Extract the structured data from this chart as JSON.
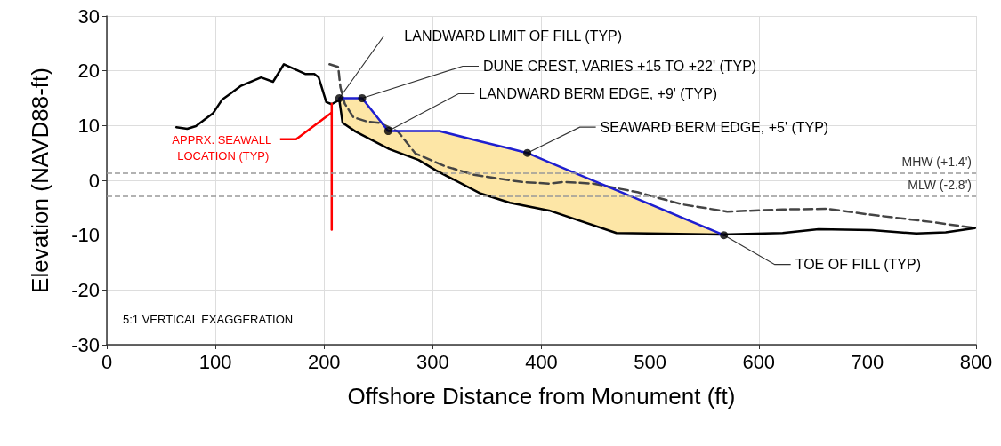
{
  "chart_data": {
    "type": "line",
    "xlabel": "Offshore Distance from Monument (ft)",
    "ylabel": "Elevation (NAVD88-ft)",
    "xlim": [
      0,
      800
    ],
    "xticks": [
      0,
      100,
      200,
      300,
      400,
      500,
      600,
      700,
      800
    ],
    "ylim": [
      -30,
      30
    ],
    "yticks": [
      -30,
      -20,
      -10,
      0,
      10,
      20,
      30
    ],
    "grid": true,
    "legend": false,
    "series": [
      {
        "color": "#444444",
        "line_style": "dashed",
        "x": [
          205,
          213,
          215,
          219,
          227,
          240,
          251,
          268,
          284,
          311,
          338,
          382,
          407,
          420,
          448,
          489,
          530,
          571,
          622,
          663,
          704,
          759,
          799
        ],
        "values": [
          21.2,
          20.7,
          17,
          14,
          11.5,
          10.7,
          10.5,
          8.9,
          4.9,
          2.6,
          1,
          -0.3,
          -0.6,
          -0.3,
          -0.6,
          -2.2,
          -4.4,
          -5.7,
          -5.3,
          -5.2,
          -6.3,
          -7.6,
          -8.7
        ]
      },
      {
        "color": "#000000",
        "line_style": "solid",
        "x": [
          64,
          74,
          82,
          98,
          106,
          123,
          142,
          153,
          163,
          174,
          183,
          191,
          195,
          202,
          207,
          214,
          217,
          229,
          260,
          287,
          303,
          344,
          371,
          407,
          469,
          565,
          622,
          655,
          704,
          745,
          772,
          799
        ],
        "values": [
          9.7,
          9.4,
          9.9,
          12.3,
          14.7,
          17.2,
          18.8,
          18,
          21.2,
          20.2,
          19.4,
          19.4,
          18.8,
          14.3,
          13.9,
          14.7,
          10.5,
          8.9,
          5.7,
          3.7,
          1.8,
          -2.4,
          -4.1,
          -5.5,
          -9.6,
          -9.9,
          -9.6,
          -8.9,
          -9.1,
          -9.7,
          -9.5,
          -8.7
        ]
      },
      {
        "color": "#1f1fd0",
        "line_style": "solid",
        "x": [
          214,
          217,
          229,
          235,
          259,
          260,
          287,
          303,
          306,
          344,
          371,
          387,
          407,
          469,
          568
        ],
        "values": [
          15,
          15,
          15,
          15,
          9,
          9,
          9,
          9,
          9,
          7.1,
          5.8,
          5,
          3.3,
          -1.8,
          -10
        ],
        "lower": [
          14.7,
          10.5,
          8.9,
          8.2,
          5.8,
          5.7,
          3.7,
          1.8,
          1.5,
          -2.4,
          -4.1,
          -5,
          -5.5,
          -9.6,
          -10
        ],
        "upper": [
          15,
          15,
          15,
          15,
          9,
          9,
          9,
          9,
          9,
          7.1,
          5.8,
          5,
          3.3,
          -1.8,
          -10
        ]
      },
      {
        "name": "APPRX. SEAWALL LOCATION (TYP)",
        "color": "#ff0000",
        "line_style": "solid",
        "x": [
          207,
          207
        ],
        "values": [
          14,
          -9
        ]
      },
      {
        "type": "scatter",
        "color": "#000000",
        "marker": "circle",
        "x": [
          214,
          235,
          259,
          387,
          568
        ],
        "values": [
          15,
          15,
          9,
          5,
          -10
        ]
      }
    ],
    "ref_lines": [
      {
        "axis": "y",
        "value": 1.4,
        "label": "MHW (+1.4')",
        "color": "#999999",
        "line_style": "dashed"
      },
      {
        "axis": "y",
        "value": -2.8,
        "label": "MLW (-2.8')",
        "color": "#999999",
        "line_style": "dashed"
      }
    ],
    "annotations": [
      {
        "text": "LANDWARD LIMIT OF FILL (TYP)",
        "x": 214,
        "y": 15
      },
      {
        "text": "DUNE CREST, VARIES +15 TO +22' (TYP)",
        "x": 235,
        "y": 15
      },
      {
        "text": "LANDWARD BERM EDGE, +9' (TYP)",
        "x": 259,
        "y": 9
      },
      {
        "text": "SEAWARD BERM EDGE, +5' (TYP)",
        "x": 387,
        "y": 5
      },
      {
        "text": "TOE OF FILL (TYP)",
        "x": 568,
        "y": -10
      },
      "5:1 VERTICAL EXAGGERATION"
    ]
  }
}
